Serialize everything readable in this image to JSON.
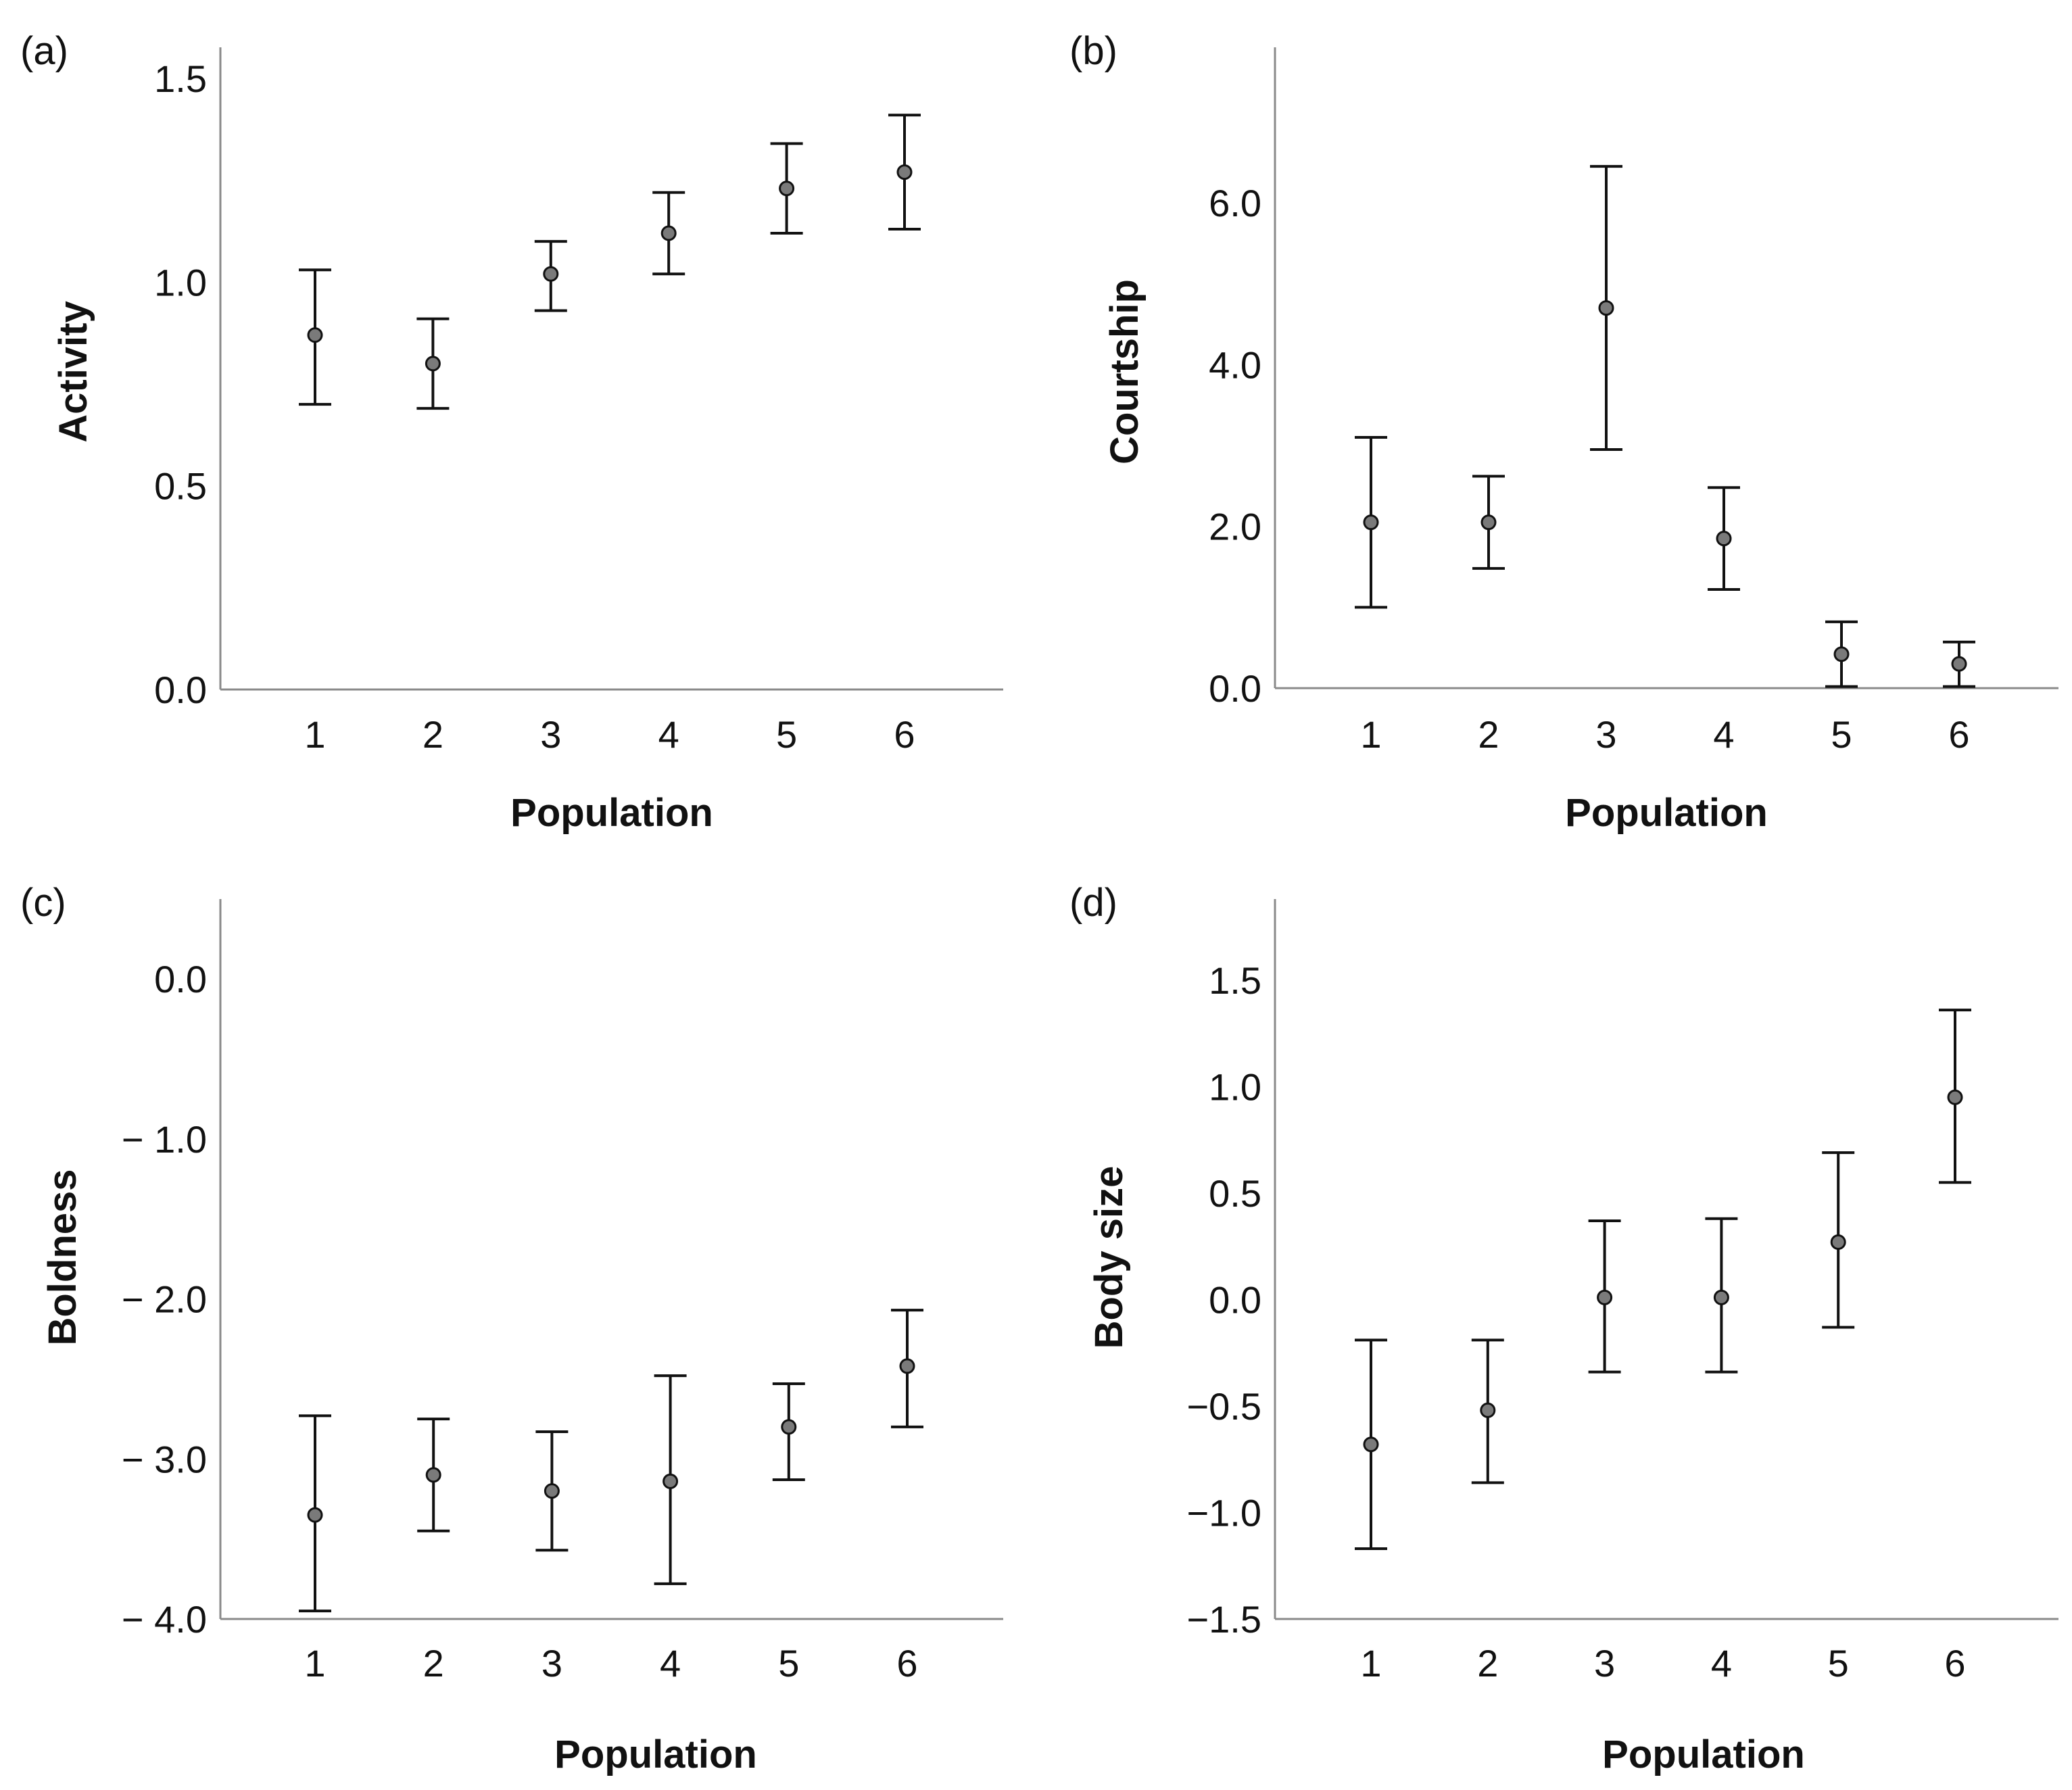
{
  "chart_data": [
    {
      "type": "scatter",
      "panel_label": "(a)",
      "xlabel": "Population",
      "ylabel": "Activity",
      "x": [
        "1",
        "2",
        "3",
        "4",
        "5",
        "6"
      ],
      "y": [
        0.87,
        0.8,
        1.02,
        1.12,
        1.23,
        1.27
      ],
      "err_low": [
        0.7,
        0.69,
        0.93,
        1.02,
        1.12,
        1.13
      ],
      "err_high": [
        1.03,
        0.91,
        1.1,
        1.22,
        1.34,
        1.41
      ],
      "ylim": [
        0,
        1.5
      ],
      "yticks": [
        0,
        0.5,
        1.0,
        1.5
      ],
      "ytick_labels": [
        "0.0",
        "0.5",
        "1.0",
        "1.5"
      ]
    },
    {
      "type": "scatter",
      "panel_label": "(b)",
      "xlabel": "Population",
      "ylabel": "Courtship",
      "x": [
        "1",
        "2",
        "3",
        "4",
        "5",
        "6"
      ],
      "y": [
        2.05,
        2.05,
        4.7,
        1.85,
        0.42,
        0.3
      ],
      "err_low": [
        1.0,
        1.48,
        2.95,
        1.22,
        0.02,
        0.02
      ],
      "err_high": [
        3.1,
        2.62,
        6.45,
        2.48,
        0.82,
        0.57
      ],
      "ylim": [
        0,
        7.75
      ],
      "yticks": [
        0,
        2,
        4,
        6
      ],
      "ytick_labels": [
        "0.0",
        "2.0",
        "4.0",
        "6.0"
      ]
    },
    {
      "type": "scatter",
      "panel_label": "(c)",
      "xlabel": "Population",
      "ylabel": "Boldness",
      "x": [
        "1",
        "2",
        "3",
        "4",
        "5",
        "6"
      ],
      "y": [
        -3.35,
        -3.1,
        -3.2,
        -3.14,
        -2.8,
        -2.42
      ],
      "err_low": [
        -3.95,
        -3.45,
        -3.57,
        -3.78,
        -3.13,
        -2.8
      ],
      "err_high": [
        -2.73,
        -2.75,
        -2.83,
        -2.48,
        -2.53,
        -2.07
      ],
      "ylim": [
        -4.0,
        0.45
      ],
      "yticks": [
        -4,
        -3,
        -2,
        -1,
        0
      ],
      "ytick_labels": [
        "− 4.0",
        "− 3.0",
        "− 2.0",
        "− 1.0",
        "0.0"
      ]
    },
    {
      "type": "scatter",
      "panel_label": "(d)",
      "xlabel": "Population",
      "ylabel": "Body size",
      "x": [
        "1",
        "2",
        "3",
        "4",
        "5",
        "6"
      ],
      "y": [
        -0.68,
        -0.52,
        0.01,
        0.01,
        0.27,
        0.95
      ],
      "err_low": [
        -1.17,
        -0.86,
        -0.34,
        -0.34,
        -0.13,
        0.55
      ],
      "err_high": [
        -0.19,
        -0.19,
        0.37,
        0.38,
        0.69,
        1.36
      ],
      "ylim": [
        -1.5,
        1.85
      ],
      "yticks": [
        -1.5,
        -1.0,
        -0.5,
        0.0,
        0.5,
        1.0,
        1.5
      ],
      "ytick_labels": [
        "−1.5",
        "−1.0",
        "−0.5",
        "0.0",
        "0.5",
        "1.0",
        "1.5"
      ]
    }
  ]
}
